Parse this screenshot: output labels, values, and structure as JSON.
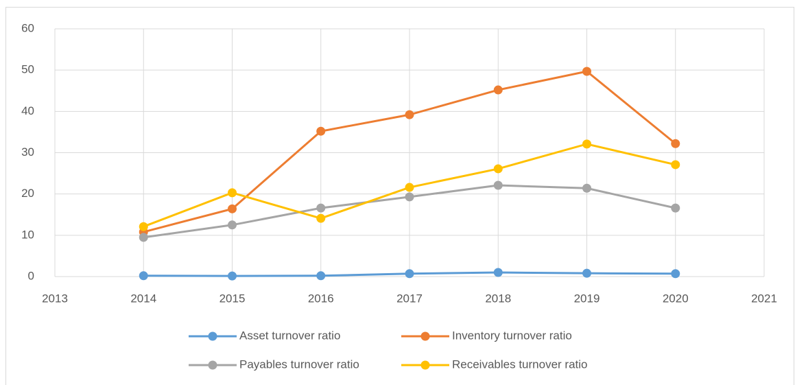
{
  "chart_data": {
    "type": "line",
    "x": [
      2014,
      2015,
      2016,
      2017,
      2018,
      2019,
      2020
    ],
    "series": [
      {
        "name": "Asset turnover ratio",
        "color": "#5b9bd5",
        "values": [
          0.2,
          0.15,
          0.2,
          0.7,
          1.0,
          0.8,
          0.7
        ]
      },
      {
        "name": "Inventory turnover ratio",
        "color": "#ed7d31",
        "values": [
          10.8,
          16.4,
          35.2,
          39.2,
          45.2,
          49.7,
          32.2
        ]
      },
      {
        "name": "Payables turnover ratio",
        "color": "#a5a5a5",
        "values": [
          9.5,
          12.5,
          16.6,
          19.3,
          22.1,
          21.4,
          16.6
        ]
      },
      {
        "name": "Receivables turnover ratio",
        "color": "#ffc000",
        "values": [
          12.1,
          20.3,
          14.1,
          21.6,
          26.1,
          32.1,
          27.1
        ]
      }
    ],
    "xlim": [
      2013,
      2021
    ],
    "xticks": [
      2013,
      2014,
      2015,
      2016,
      2017,
      2018,
      2019,
      2020,
      2021
    ],
    "ylim": [
      0,
      60
    ],
    "yticks": [
      0,
      10,
      20,
      30,
      40,
      50,
      60
    ],
    "grid": true,
    "legend": "bottom"
  }
}
